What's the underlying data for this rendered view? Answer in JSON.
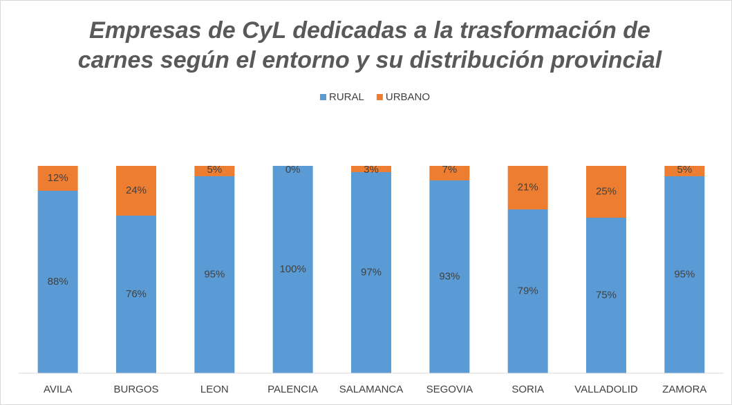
{
  "chart_data": {
    "type": "stacked_bar",
    "title": [
      "Empresas de CyL dedicadas a la trasformación de",
      "carnes según el entorno y su distribución provincial"
    ],
    "categories": [
      "AVILA",
      "BURGOS",
      "LEON",
      "PALENCIA",
      "SALAMANCA",
      "SEGOVIA",
      "SORIA",
      "VALLADOLID",
      "ZAMORA"
    ],
    "series": [
      {
        "name": "RURAL",
        "color": "#5b9bd5",
        "values": [
          88,
          76,
          95,
          100,
          97,
          93,
          79,
          75,
          95
        ],
        "value_labels": [
          "88%",
          "76%",
          "95%",
          "100%",
          "97%",
          "93%",
          "79%",
          "75%",
          "95%"
        ]
      },
      {
        "name": "URBANO",
        "color": "#ed7d31",
        "values": [
          12,
          24,
          5,
          0,
          3,
          7,
          21,
          25,
          5
        ],
        "value_labels": [
          "12%",
          "24%",
          "5%",
          "0%",
          "3%",
          "7%",
          "21%",
          "25%",
          "5%"
        ]
      }
    ],
    "ylim": [
      0,
      100
    ],
    "legend": "top"
  }
}
